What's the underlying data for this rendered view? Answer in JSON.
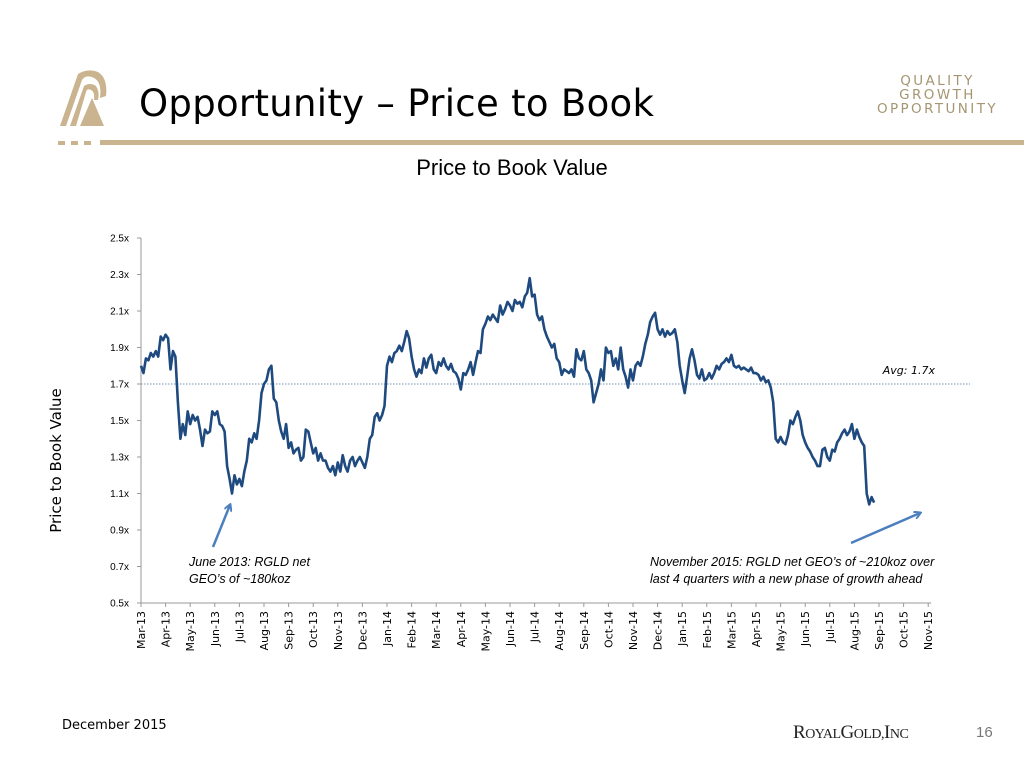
{
  "header": {
    "title": "Opportunity – Price to Book",
    "tagline": [
      "QUALITY",
      "GROWTH",
      "OPPORTUNITY"
    ]
  },
  "footer": {
    "date": "December 2015",
    "brand_main": "ROYALGOLD,INC",
    "brand_parts": [
      "R",
      "OYAL",
      "G",
      "OLD,",
      "I",
      "NC"
    ],
    "page_number": "16"
  },
  "colors": {
    "line": "#1f4a7f",
    "avg_line": "#8fa8c4",
    "arrow": "#4b7fbd",
    "gold": "#c9b48f",
    "axis": "#9a9a9a"
  },
  "chart_data": {
    "type": "line",
    "title": "Price to Book Value",
    "ylabel": "Price to Book Value",
    "xlabel": "",
    "ylim": [
      0.5,
      2.5
    ],
    "y_ticks": [
      "2.5x",
      "2.3x",
      "2.1x",
      "1.9x",
      "1.7x",
      "1.5x",
      "1.3x",
      "1.1x",
      "0.9x",
      "0.7x",
      "0.5x"
    ],
    "y_tick_values": [
      2.5,
      2.3,
      2.1,
      1.9,
      1.7,
      1.5,
      1.3,
      1.1,
      0.9,
      0.7,
      0.5
    ],
    "x_tick_labels": [
      "Mar-13",
      "Apr-13",
      "May-13",
      "Jun-13",
      "Jul-13",
      "Aug-13",
      "Sep-13",
      "Oct-13",
      "Nov-13",
      "Dec-13",
      "Jan-14",
      "Feb-14",
      "Mar-14",
      "Apr-14",
      "May-14",
      "Jun-14",
      "Jul-14",
      "Aug-14",
      "Sep-14",
      "Oct-14",
      "Nov-14",
      "Dec-14",
      "Jan-15",
      "Feb-15",
      "Mar-15",
      "Apr-15",
      "May-15",
      "Jun-15",
      "Jul-15",
      "Aug-15",
      "Sep-15",
      "Oct-15",
      "Nov-15"
    ],
    "grid": false,
    "average": {
      "value": 1.7,
      "label": "Avg: 1.7x"
    },
    "series": [
      {
        "name": "Price to Book Value",
        "x_month_index": [
          0,
          0.1,
          0.2,
          0.3,
          0.4,
          0.5,
          0.6,
          0.7,
          0.8,
          0.9,
          1.0,
          1.1,
          1.2,
          1.3,
          1.4,
          1.5,
          1.6,
          1.7,
          1.8,
          1.9,
          2.0,
          2.1,
          2.2,
          2.3,
          2.4,
          2.5,
          2.6,
          2.7,
          2.8,
          2.9,
          3.0,
          3.1,
          3.2,
          3.3,
          3.4,
          3.5,
          3.6,
          3.7,
          3.8,
          3.9,
          4.0,
          4.1,
          4.2,
          4.3,
          4.4,
          4.5,
          4.6,
          4.7,
          4.8,
          4.9,
          5.0,
          5.1,
          5.2,
          5.3,
          5.4,
          5.5,
          5.6,
          5.7,
          5.8,
          5.9,
          6.0,
          6.1,
          6.2,
          6.3,
          6.4,
          6.5,
          6.6,
          6.7,
          6.8,
          6.9,
          7.0,
          7.1,
          7.2,
          7.3,
          7.4,
          7.5,
          7.6,
          7.7,
          7.8,
          7.9,
          8.0,
          8.1,
          8.2,
          8.3,
          8.4,
          8.5,
          8.6,
          8.7,
          8.8,
          8.9,
          9.0,
          9.1,
          9.2,
          9.3,
          9.4,
          9.5,
          9.6,
          9.7,
          9.8,
          9.9,
          10.0,
          10.1,
          10.2,
          10.3,
          10.4,
          10.5,
          10.6,
          10.7,
          10.8,
          10.9,
          11.0,
          11.1,
          11.2,
          11.3,
          11.4,
          11.5,
          11.6,
          11.7,
          11.8,
          11.9,
          12.0,
          12.1,
          12.2,
          12.3,
          12.4,
          12.5,
          12.6,
          12.7,
          12.8,
          12.9,
          13.0,
          13.1,
          13.2,
          13.3,
          13.4,
          13.5,
          13.6,
          13.7,
          13.8,
          13.9,
          14.0,
          14.1,
          14.2,
          14.3,
          14.4,
          14.5,
          14.6,
          14.7,
          14.8,
          14.9,
          15.0,
          15.1,
          15.2,
          15.3,
          15.4,
          15.5,
          15.6,
          15.7,
          15.8,
          15.9,
          16.0,
          16.1,
          16.2,
          16.3,
          16.4,
          16.5,
          16.6,
          16.7,
          16.8,
          16.9,
          17.0,
          17.1,
          17.2,
          17.3,
          17.4,
          17.5,
          17.6,
          17.7,
          17.8,
          17.9,
          18.0,
          18.1,
          18.2,
          18.3,
          18.4,
          18.5,
          18.6,
          18.7,
          18.8,
          18.9,
          19.0,
          19.1,
          19.2,
          19.3,
          19.4,
          19.5,
          19.6,
          19.7,
          19.8,
          19.9,
          20.0,
          20.1,
          20.2,
          20.3,
          20.4,
          20.5,
          20.6,
          20.7,
          20.8,
          20.9,
          21.0,
          21.1,
          21.2,
          21.3,
          21.4,
          21.5,
          21.6,
          21.7,
          21.8,
          21.9,
          22.0,
          22.1,
          22.2,
          22.3,
          22.4,
          22.5,
          22.6,
          22.7,
          22.8,
          22.9,
          23.0,
          23.1,
          23.2,
          23.3,
          23.4,
          23.5,
          23.6,
          23.7,
          23.8,
          23.9,
          24.0,
          24.1,
          24.2,
          24.3,
          24.4,
          24.5,
          24.6,
          24.7,
          24.8,
          24.9,
          25.0,
          25.1,
          25.2,
          25.3,
          25.4,
          25.5,
          25.6,
          25.7,
          25.8,
          25.9,
          26.0,
          26.1,
          26.2,
          26.3,
          26.4,
          26.5,
          26.6,
          26.7,
          26.8,
          26.9,
          27.0,
          27.1,
          27.2,
          27.3,
          27.4,
          27.5,
          27.6,
          27.7,
          27.8,
          27.9,
          28.0,
          28.1,
          28.2,
          28.3,
          28.4,
          28.5,
          28.6,
          28.7,
          28.8,
          28.9,
          29.0,
          29.1,
          29.2,
          29.3,
          29.4,
          29.5,
          29.6,
          29.7,
          29.8,
          29.9,
          30.0,
          30.1,
          30.2,
          30.3,
          30.4,
          30.5,
          30.6,
          30.7,
          30.8,
          30.9,
          31.0,
          31.1,
          31.2,
          31.3,
          31.4,
          31.5,
          31.6,
          31.7,
          31.8,
          31.9,
          32.0,
          32.1,
          32.2,
          32.3
        ],
        "values": [
          1.8,
          1.76,
          1.84,
          1.83,
          1.87,
          1.85,
          1.88,
          1.85,
          1.96,
          1.94,
          1.97,
          1.95,
          1.78,
          1.88,
          1.85,
          1.6,
          1.4,
          1.48,
          1.42,
          1.55,
          1.48,
          1.53,
          1.5,
          1.52,
          1.45,
          1.36,
          1.45,
          1.43,
          1.44,
          1.55,
          1.53,
          1.55,
          1.48,
          1.47,
          1.44,
          1.25,
          1.18,
          1.1,
          1.2,
          1.15,
          1.18,
          1.14,
          1.22,
          1.28,
          1.4,
          1.38,
          1.43,
          1.4,
          1.5,
          1.65,
          1.7,
          1.72,
          1.78,
          1.8,
          1.62,
          1.6,
          1.5,
          1.44,
          1.4,
          1.48,
          1.35,
          1.38,
          1.32,
          1.34,
          1.35,
          1.28,
          1.3,
          1.45,
          1.44,
          1.38,
          1.32,
          1.35,
          1.28,
          1.32,
          1.28,
          1.28,
          1.24,
          1.22,
          1.25,
          1.2,
          1.27,
          1.22,
          1.31,
          1.25,
          1.22,
          1.28,
          1.3,
          1.25,
          1.28,
          1.3,
          1.27,
          1.24,
          1.3,
          1.4,
          1.42,
          1.52,
          1.54,
          1.5,
          1.53,
          1.58,
          1.8,
          1.85,
          1.82,
          1.87,
          1.88,
          1.91,
          1.88,
          1.93,
          1.99,
          1.95,
          1.85,
          1.78,
          1.74,
          1.78,
          1.76,
          1.84,
          1.79,
          1.84,
          1.86,
          1.78,
          1.76,
          1.82,
          1.8,
          1.84,
          1.8,
          1.78,
          1.81,
          1.77,
          1.76,
          1.73,
          1.67,
          1.76,
          1.75,
          1.78,
          1.82,
          1.75,
          1.82,
          1.88,
          1.87,
          2.0,
          2.03,
          2.07,
          2.05,
          2.08,
          2.06,
          2.04,
          2.13,
          2.08,
          2.11,
          2.15,
          2.13,
          2.1,
          2.16,
          2.14,
          2.15,
          2.12,
          2.18,
          2.2,
          2.28,
          2.18,
          2.19,
          2.08,
          2.05,
          2.07,
          2.0,
          1.96,
          1.93,
          1.9,
          1.92,
          1.84,
          1.82,
          1.75,
          1.78,
          1.77,
          1.76,
          1.78,
          1.74,
          1.89,
          1.84,
          1.83,
          1.88,
          1.78,
          1.76,
          1.72,
          1.6,
          1.65,
          1.7,
          1.78,
          1.72,
          1.9,
          1.87,
          1.88,
          1.8,
          1.84,
          1.78,
          1.9,
          1.78,
          1.74,
          1.68,
          1.78,
          1.72,
          1.8,
          1.82,
          1.8,
          1.85,
          1.92,
          1.97,
          2.04,
          2.07,
          2.09,
          2.0,
          1.97,
          2.0,
          1.96,
          1.99,
          1.97,
          1.98,
          2.0,
          1.93,
          1.8,
          1.72,
          1.65,
          1.74,
          1.84,
          1.89,
          1.83,
          1.75,
          1.73,
          1.78,
          1.72,
          1.73,
          1.76,
          1.73,
          1.76,
          1.8,
          1.78,
          1.81,
          1.82,
          1.84,
          1.82,
          1.86,
          1.8,
          1.79,
          1.8,
          1.78,
          1.79,
          1.78,
          1.77,
          1.79,
          1.76,
          1.76,
          1.75,
          1.72,
          1.74,
          1.71,
          1.72,
          1.68,
          1.6,
          1.4,
          1.38,
          1.41,
          1.38,
          1.37,
          1.42,
          1.5,
          1.48,
          1.52,
          1.55,
          1.5,
          1.42,
          1.38,
          1.35,
          1.33,
          1.3,
          1.28,
          1.25,
          1.25,
          1.34,
          1.35,
          1.3,
          1.28,
          1.34,
          1.33,
          1.38,
          1.4,
          1.43,
          1.45,
          1.42,
          1.44,
          1.48,
          1.4,
          1.45,
          1.41,
          1.38,
          1.36,
          1.1,
          1.04,
          1.08,
          1.05
        ]
      }
    ],
    "annotations": [
      {
        "text_lines": [
          "June 2013: RGLD net",
          "GEO’s of ~180koz"
        ],
        "points_to": {
          "x_label": "Jul-13",
          "value": 1.08
        }
      },
      {
        "text_lines": [
          "November 2015: RGLD net GEO’s of ~210koz over",
          "last 4 quarters with a new phase of growth ahead"
        ],
        "points_to": {
          "x_label": "Nov-15",
          "value": 1.0
        }
      }
    ]
  }
}
